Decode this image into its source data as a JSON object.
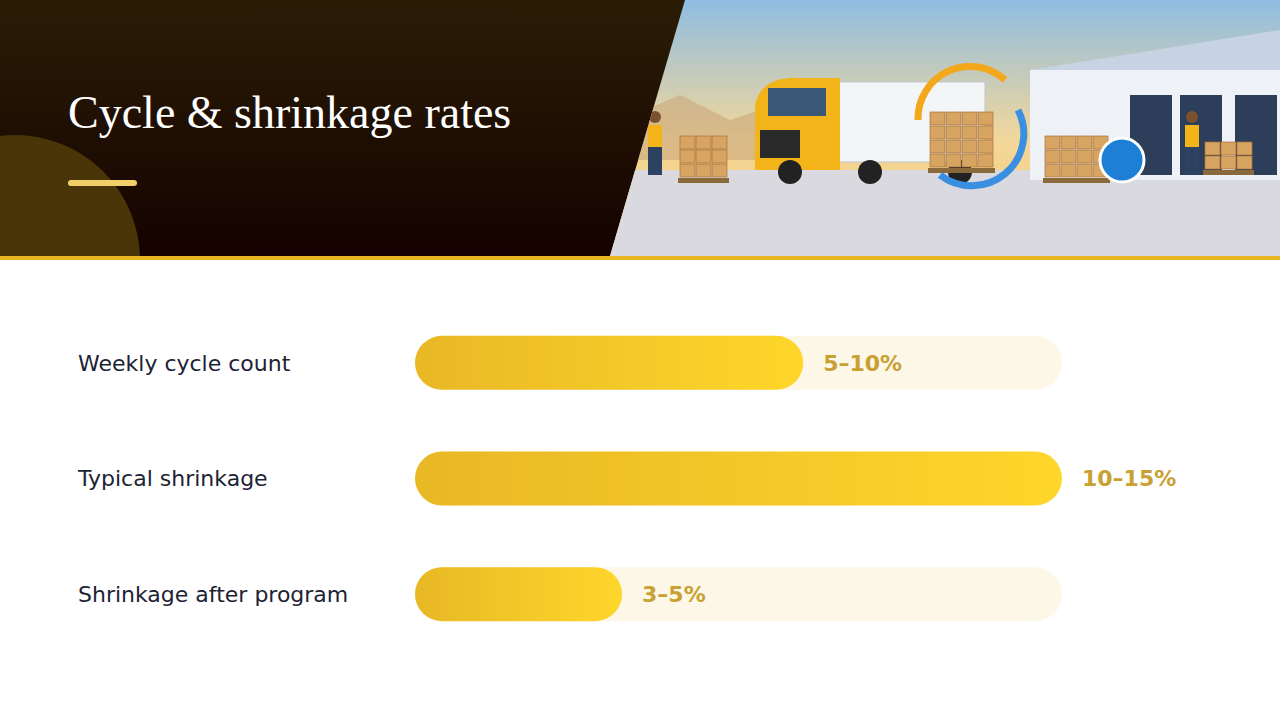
{
  "chart_data": {
    "type": "bar",
    "orientation": "horizontal",
    "title": "Cycle & shrinkage rates",
    "categories": [
      "Weekly cycle count",
      "Typical shrinkage",
      "Shrinkage after program"
    ],
    "values": [
      7.5,
      12.5,
      4
    ],
    "value_labels": [
      "5–10%",
      "10–15%",
      "3–5%"
    ],
    "xlim": [
      0,
      12.5
    ],
    "data_labels": true,
    "tick_labels": false,
    "color": "#efbd26"
  }
}
